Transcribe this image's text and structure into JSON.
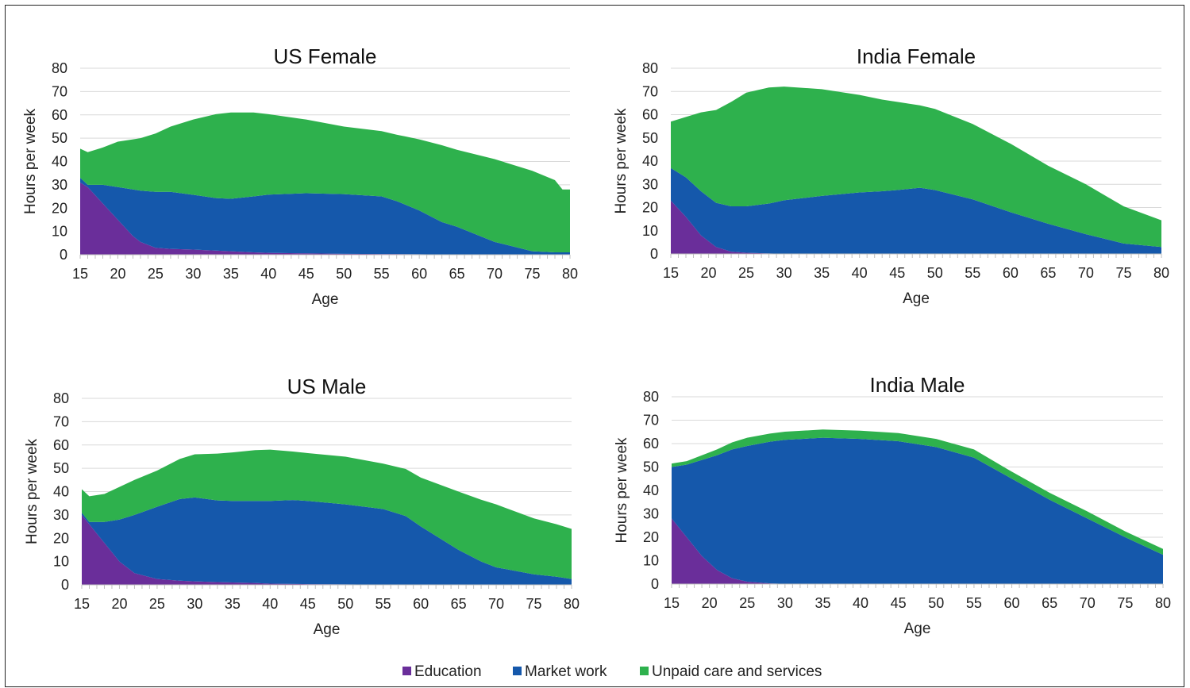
{
  "legend": {
    "items": [
      {
        "label": "Education",
        "color": "#6a2e9a"
      },
      {
        "label": "Market work",
        "color": "#1558ab"
      },
      {
        "label": "Unpaid care and services",
        "color": "#2eb14d"
      }
    ]
  },
  "chart_data": [
    {
      "type": "area",
      "stacked": true,
      "title": "US Female",
      "xlabel": "Age",
      "ylabel": "Hours per week",
      "xlim": [
        15,
        80
      ],
      "ylim": [
        0,
        80
      ],
      "xticks": [
        15,
        20,
        25,
        30,
        35,
        40,
        45,
        50,
        55,
        60,
        65,
        70,
        75,
        80
      ],
      "yticks": [
        0,
        10,
        20,
        30,
        40,
        50,
        60,
        70,
        80
      ],
      "x": [
        15,
        16,
        18,
        20,
        22,
        23,
        25,
        27,
        30,
        33,
        35,
        38,
        40,
        45,
        50,
        55,
        57,
        60,
        63,
        65,
        70,
        75,
        78,
        79,
        80
      ],
      "series": [
        {
          "name": "Education",
          "values": [
            31,
            29,
            22,
            15,
            8,
            5.5,
            3,
            2.5,
            2.2,
            1.8,
            1.5,
            1,
            0.8,
            0.6,
            0.4,
            0.3,
            0.3,
            0.2,
            0.1,
            0.1,
            0,
            0,
            0,
            0,
            0
          ]
        },
        {
          "name": "Market work",
          "values": [
            2,
            1,
            8,
            14,
            20,
            22,
            24,
            24.5,
            23.5,
            22.5,
            22.5,
            24,
            25,
            25.8,
            25.6,
            24.7,
            22.7,
            18.8,
            13.9,
            11.9,
            5.5,
            1.5,
            1,
            1,
            1
          ]
        },
        {
          "name": "Unpaid care and services",
          "values": [
            12.5,
            14,
            16,
            19.5,
            21.5,
            22.5,
            25,
            28,
            32.3,
            36,
            37,
            36,
            34.5,
            31.6,
            29,
            28,
            28.5,
            30.5,
            33,
            33,
            35.5,
            34.5,
            31,
            27,
            27
          ]
        }
      ]
    },
    {
      "type": "area",
      "stacked": true,
      "title": "India Female",
      "xlabel": "Age",
      "ylabel": "Hours per week",
      "xlim": [
        15,
        80
      ],
      "ylim": [
        0,
        80
      ],
      "xticks": [
        15,
        20,
        25,
        30,
        35,
        40,
        45,
        50,
        55,
        60,
        65,
        70,
        75,
        80
      ],
      "yticks": [
        0,
        10,
        20,
        30,
        40,
        50,
        60,
        70,
        80
      ],
      "x": [
        15,
        17,
        19,
        21,
        23,
        25,
        28,
        30,
        35,
        40,
        43,
        45,
        48,
        50,
        55,
        60,
        65,
        70,
        75,
        80
      ],
      "series": [
        {
          "name": "Education",
          "values": [
            23,
            16,
            8,
            3,
            1,
            0.5,
            0.2,
            0.1,
            0,
            0,
            0,
            0,
            0,
            0,
            0,
            0,
            0,
            0,
            0,
            0
          ]
        },
        {
          "name": "Market work",
          "values": [
            14,
            17,
            19,
            19,
            19.5,
            20,
            21.5,
            23,
            25,
            26.5,
            27,
            27.5,
            28.5,
            27.5,
            23.5,
            18,
            13,
            8.5,
            4.5,
            3
          ]
        },
        {
          "name": "Unpaid care and services",
          "values": [
            20,
            26,
            34,
            40,
            45,
            49,
            50,
            49,
            46,
            42,
            39.5,
            38,
            35.5,
            35,
            32.5,
            29.5,
            25,
            21.5,
            16,
            11.5
          ]
        }
      ]
    },
    {
      "type": "area",
      "stacked": true,
      "title": "US Male",
      "xlabel": "Age",
      "ylabel": "Hours per week",
      "xlim": [
        15,
        80
      ],
      "ylim": [
        0,
        80
      ],
      "xticks": [
        15,
        20,
        25,
        30,
        35,
        40,
        45,
        50,
        55,
        60,
        65,
        70,
        75,
        80
      ],
      "yticks": [
        0,
        10,
        20,
        30,
        40,
        50,
        60,
        70,
        80
      ],
      "x": [
        15,
        16,
        18,
        20,
        22,
        25,
        28,
        30,
        33,
        35,
        38,
        40,
        43,
        45,
        50,
        55,
        58,
        60,
        65,
        68,
        70,
        75,
        78,
        80
      ],
      "series": [
        {
          "name": "Education",
          "values": [
            30,
            26,
            18,
            10,
            5,
            2.5,
            1.8,
            1.5,
            1.2,
            1,
            0.8,
            0.5,
            0.4,
            0.3,
            0.2,
            0.1,
            0.1,
            0,
            0,
            0,
            0,
            0,
            0,
            0
          ]
        },
        {
          "name": "Market work",
          "values": [
            1,
            1,
            9,
            18,
            25,
            31,
            35,
            36,
            35,
            35,
            35.2,
            35.5,
            36,
            35.7,
            34.3,
            32.4,
            29.4,
            25,
            15,
            10,
            7.5,
            4.5,
            3.5,
            2.5
          ]
        },
        {
          "name": "Unpaid care and services",
          "values": [
            10,
            11,
            12,
            14,
            15,
            15.5,
            17.2,
            18.5,
            20.1,
            20.8,
            21.8,
            22,
            20.8,
            20.5,
            20.5,
            19.5,
            20.2,
            21,
            25,
            26.5,
            27,
            24,
            22.5,
            21.5
          ]
        }
      ]
    },
    {
      "type": "area",
      "stacked": true,
      "title": "India Male",
      "xlabel": "Age",
      "ylabel": "Hours per week",
      "xlim": [
        15,
        80
      ],
      "ylim": [
        0,
        80
      ],
      "xticks": [
        15,
        20,
        25,
        30,
        35,
        40,
        45,
        50,
        55,
        60,
        65,
        70,
        75,
        80
      ],
      "yticks": [
        0,
        10,
        20,
        30,
        40,
        50,
        60,
        70,
        80
      ],
      "x": [
        15,
        17,
        19,
        21,
        23,
        25,
        28,
        30,
        35,
        40,
        45,
        50,
        55,
        60,
        65,
        70,
        75,
        80
      ],
      "series": [
        {
          "name": "Education",
          "values": [
            28,
            20,
            12,
            6,
            2.5,
            1,
            0.3,
            0.1,
            0,
            0,
            0,
            0,
            0,
            0,
            0,
            0,
            0,
            0
          ]
        },
        {
          "name": "Market work",
          "values": [
            22,
            31,
            41,
            49,
            55,
            58,
            60.5,
            61.5,
            62.5,
            62,
            61,
            58.5,
            54,
            45,
            36,
            28,
            20,
            12.5
          ]
        },
        {
          "name": "Unpaid care and services",
          "values": [
            1.5,
            1.5,
            2,
            2.5,
            3,
            3.5,
            3.5,
            3.5,
            3.5,
            3.5,
            3.5,
            3.5,
            3.5,
            3,
            3,
            3,
            2.5,
            2.5
          ]
        }
      ]
    }
  ]
}
